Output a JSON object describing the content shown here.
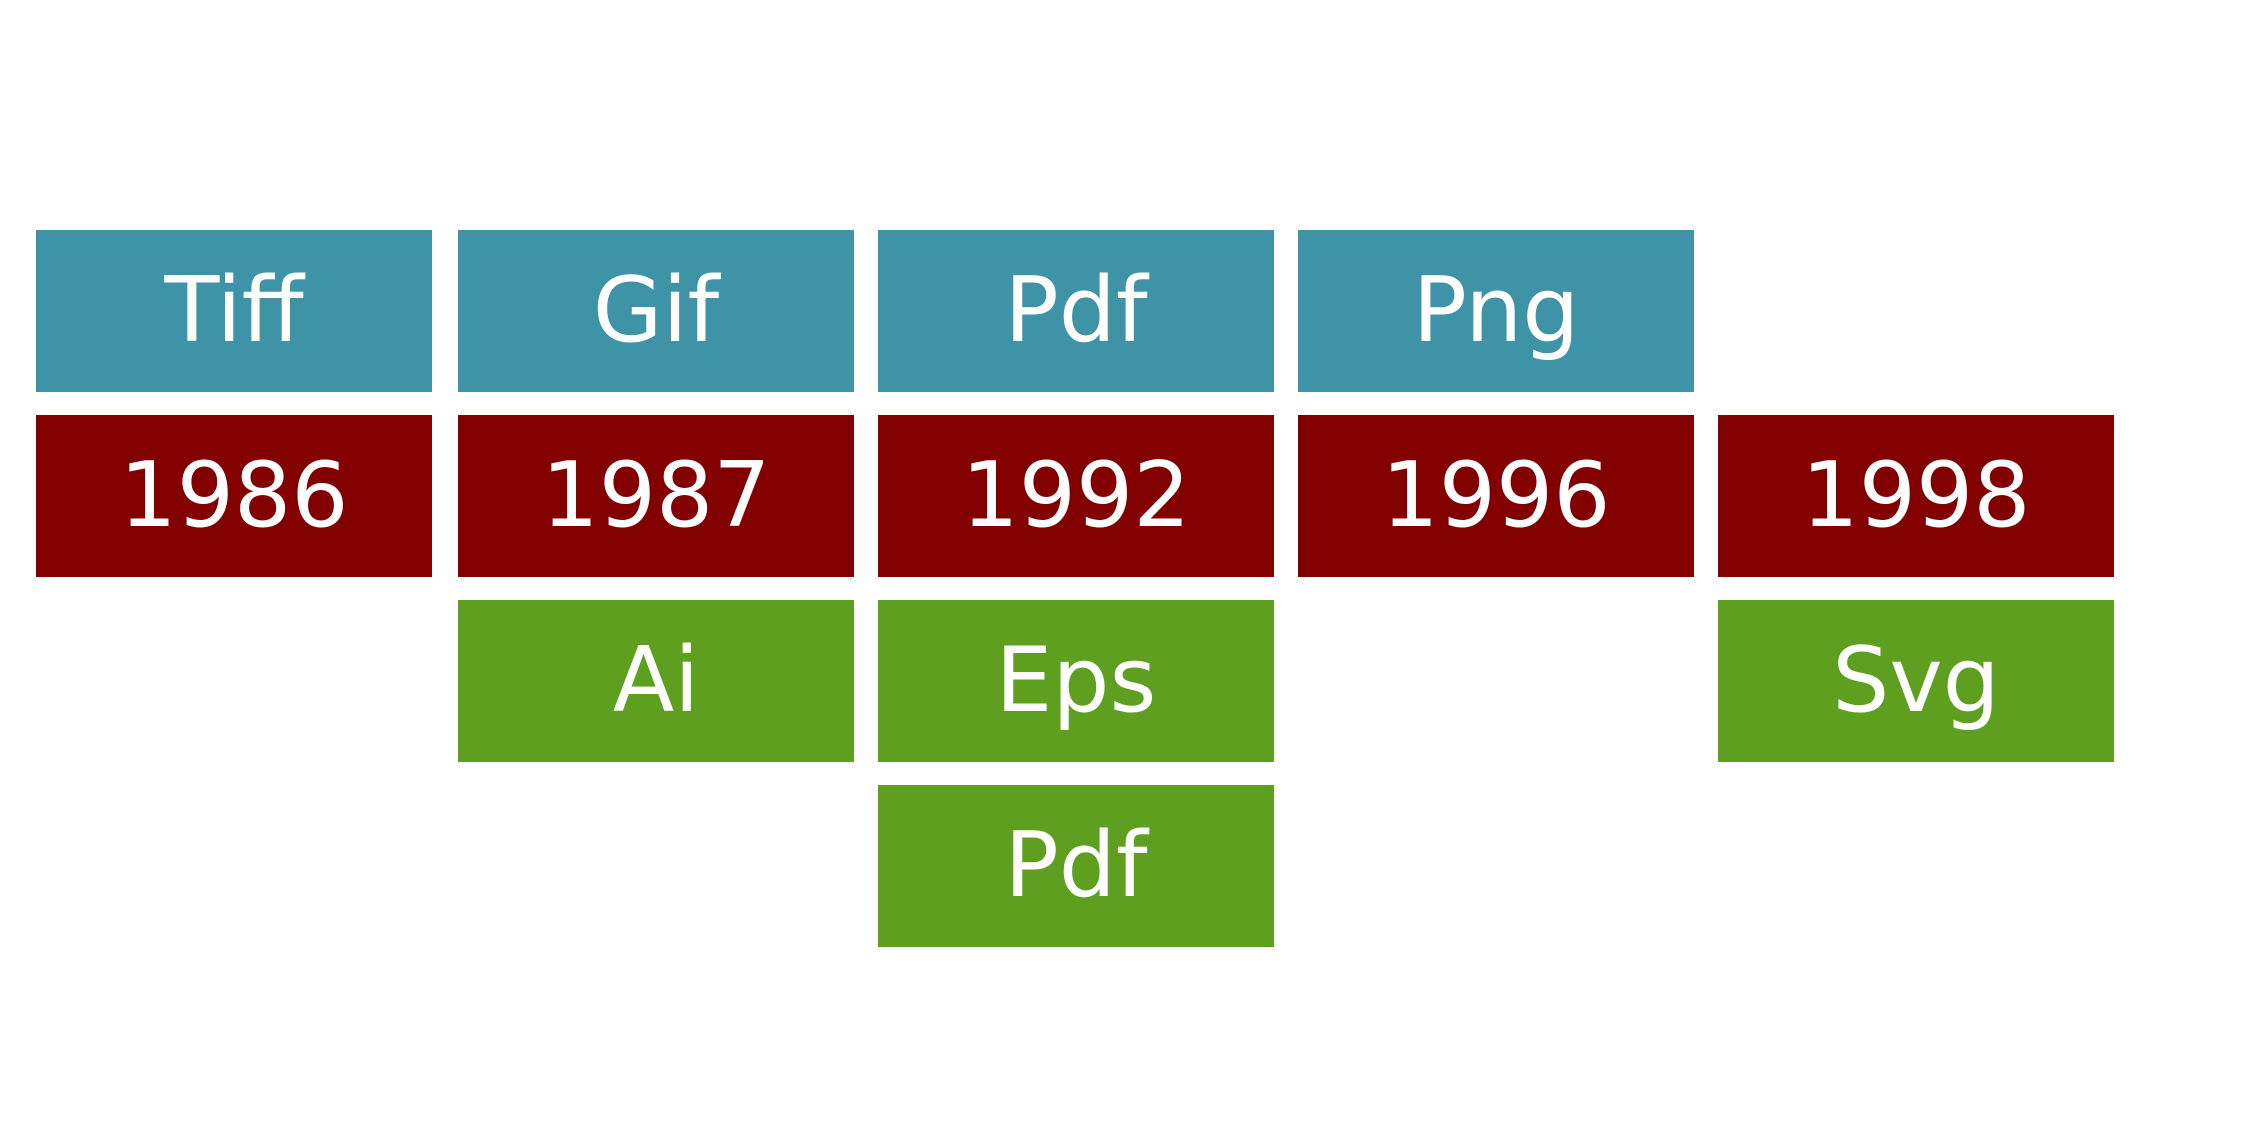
{
  "timeline": [
    {
      "year": "1986",
      "raster": "Tiff",
      "vector": []
    },
    {
      "year": "1987",
      "raster": "Gif",
      "vector": [
        "Ai"
      ]
    },
    {
      "year": "1992",
      "raster": "Pdf",
      "vector": [
        "Eps",
        "Pdf"
      ]
    },
    {
      "year": "1996",
      "raster": "Png",
      "vector": []
    },
    {
      "year": "1998",
      "raster": "",
      "vector": [
        "Svg"
      ]
    }
  ],
  "colors": {
    "raster": "#3f93a6",
    "year": "#820000",
    "vector": "#5f9f1f",
    "text": "#ffffff"
  }
}
